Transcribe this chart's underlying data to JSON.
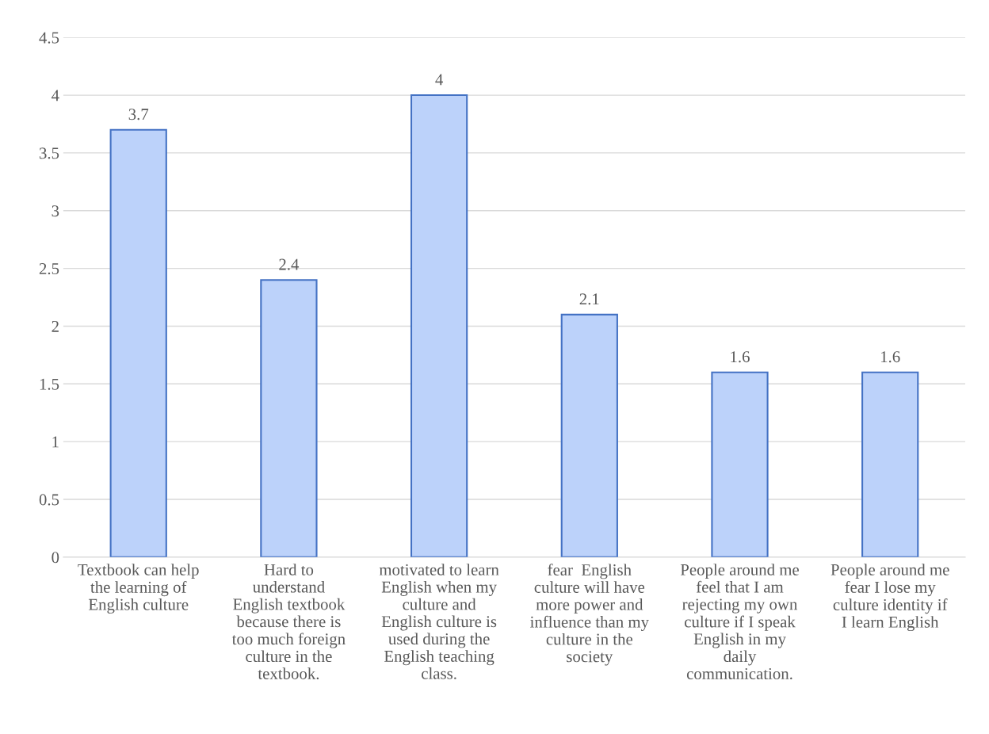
{
  "chart_data": {
    "type": "bar",
    "categories": [
      "Textbook can help\nthe learning of\nEnglish culture",
      "Hard to\nunderstand\nEnglish textbook\nbecause there is\ntoo much foreign\nculture in the\ntextbook.",
      "motivated to learn\nEnglish when my\nculture and\nEnglish culture is\nused during the\nEnglish teaching\nclass.",
      "fear  English\nculture will have\nmore power and\ninfluence than my\nculture in the\nsociety",
      "People around me\nfeel that I am\nrejecting my own\nculture if I speak\nEnglish in my\ndaily\ncommunication.",
      "People around me\nfear I lose my\nculture identity if\nI learn English"
    ],
    "values": [
      3.7,
      2.4,
      4,
      2.1,
      1.6,
      1.6
    ],
    "color": "#bcd2fa",
    "ylim": [
      0,
      4.5
    ],
    "yticks": [
      0,
      0.5,
      1,
      1.5,
      2,
      2.5,
      3,
      3.5,
      4,
      4.5
    ],
    "grid": "y",
    "data_labels": true
  }
}
